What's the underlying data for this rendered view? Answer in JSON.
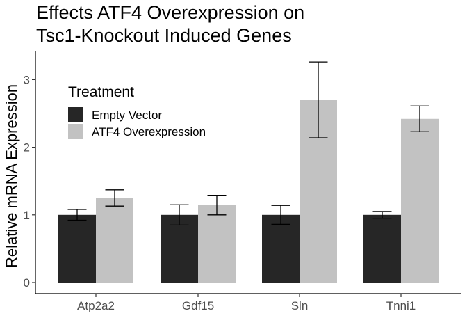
{
  "chart_data": {
    "type": "bar",
    "title_lines": [
      "Effects ATF4 Overexpression on",
      "Tsc1-Knockout Induced Genes"
    ],
    "xlabel": "",
    "ylabel": "Relative mRNA Expression",
    "categories": [
      "Atp2a2",
      "Gdf15",
      "Sln",
      "Tnni1"
    ],
    "yticks": [
      0,
      1,
      2,
      3
    ],
    "ylim": [
      0,
      3.4
    ],
    "grid": false,
    "legend": {
      "title": "Treatment",
      "placement": "top-left"
    },
    "series": [
      {
        "name": "Empty Vector",
        "color": "#262626",
        "values": [
          1.0,
          1.0,
          1.0,
          1.0
        ],
        "err_low": [
          0.92,
          0.85,
          0.86,
          0.95
        ],
        "err_high": [
          1.08,
          1.15,
          1.14,
          1.05
        ]
      },
      {
        "name": "ATF4 Overexpression",
        "color": "#c2c2c2",
        "values": [
          1.25,
          1.15,
          2.7,
          2.42
        ],
        "err_low": [
          1.13,
          1.0,
          2.14,
          2.23
        ],
        "err_high": [
          1.37,
          1.29,
          3.26,
          2.61
        ]
      }
    ]
  }
}
